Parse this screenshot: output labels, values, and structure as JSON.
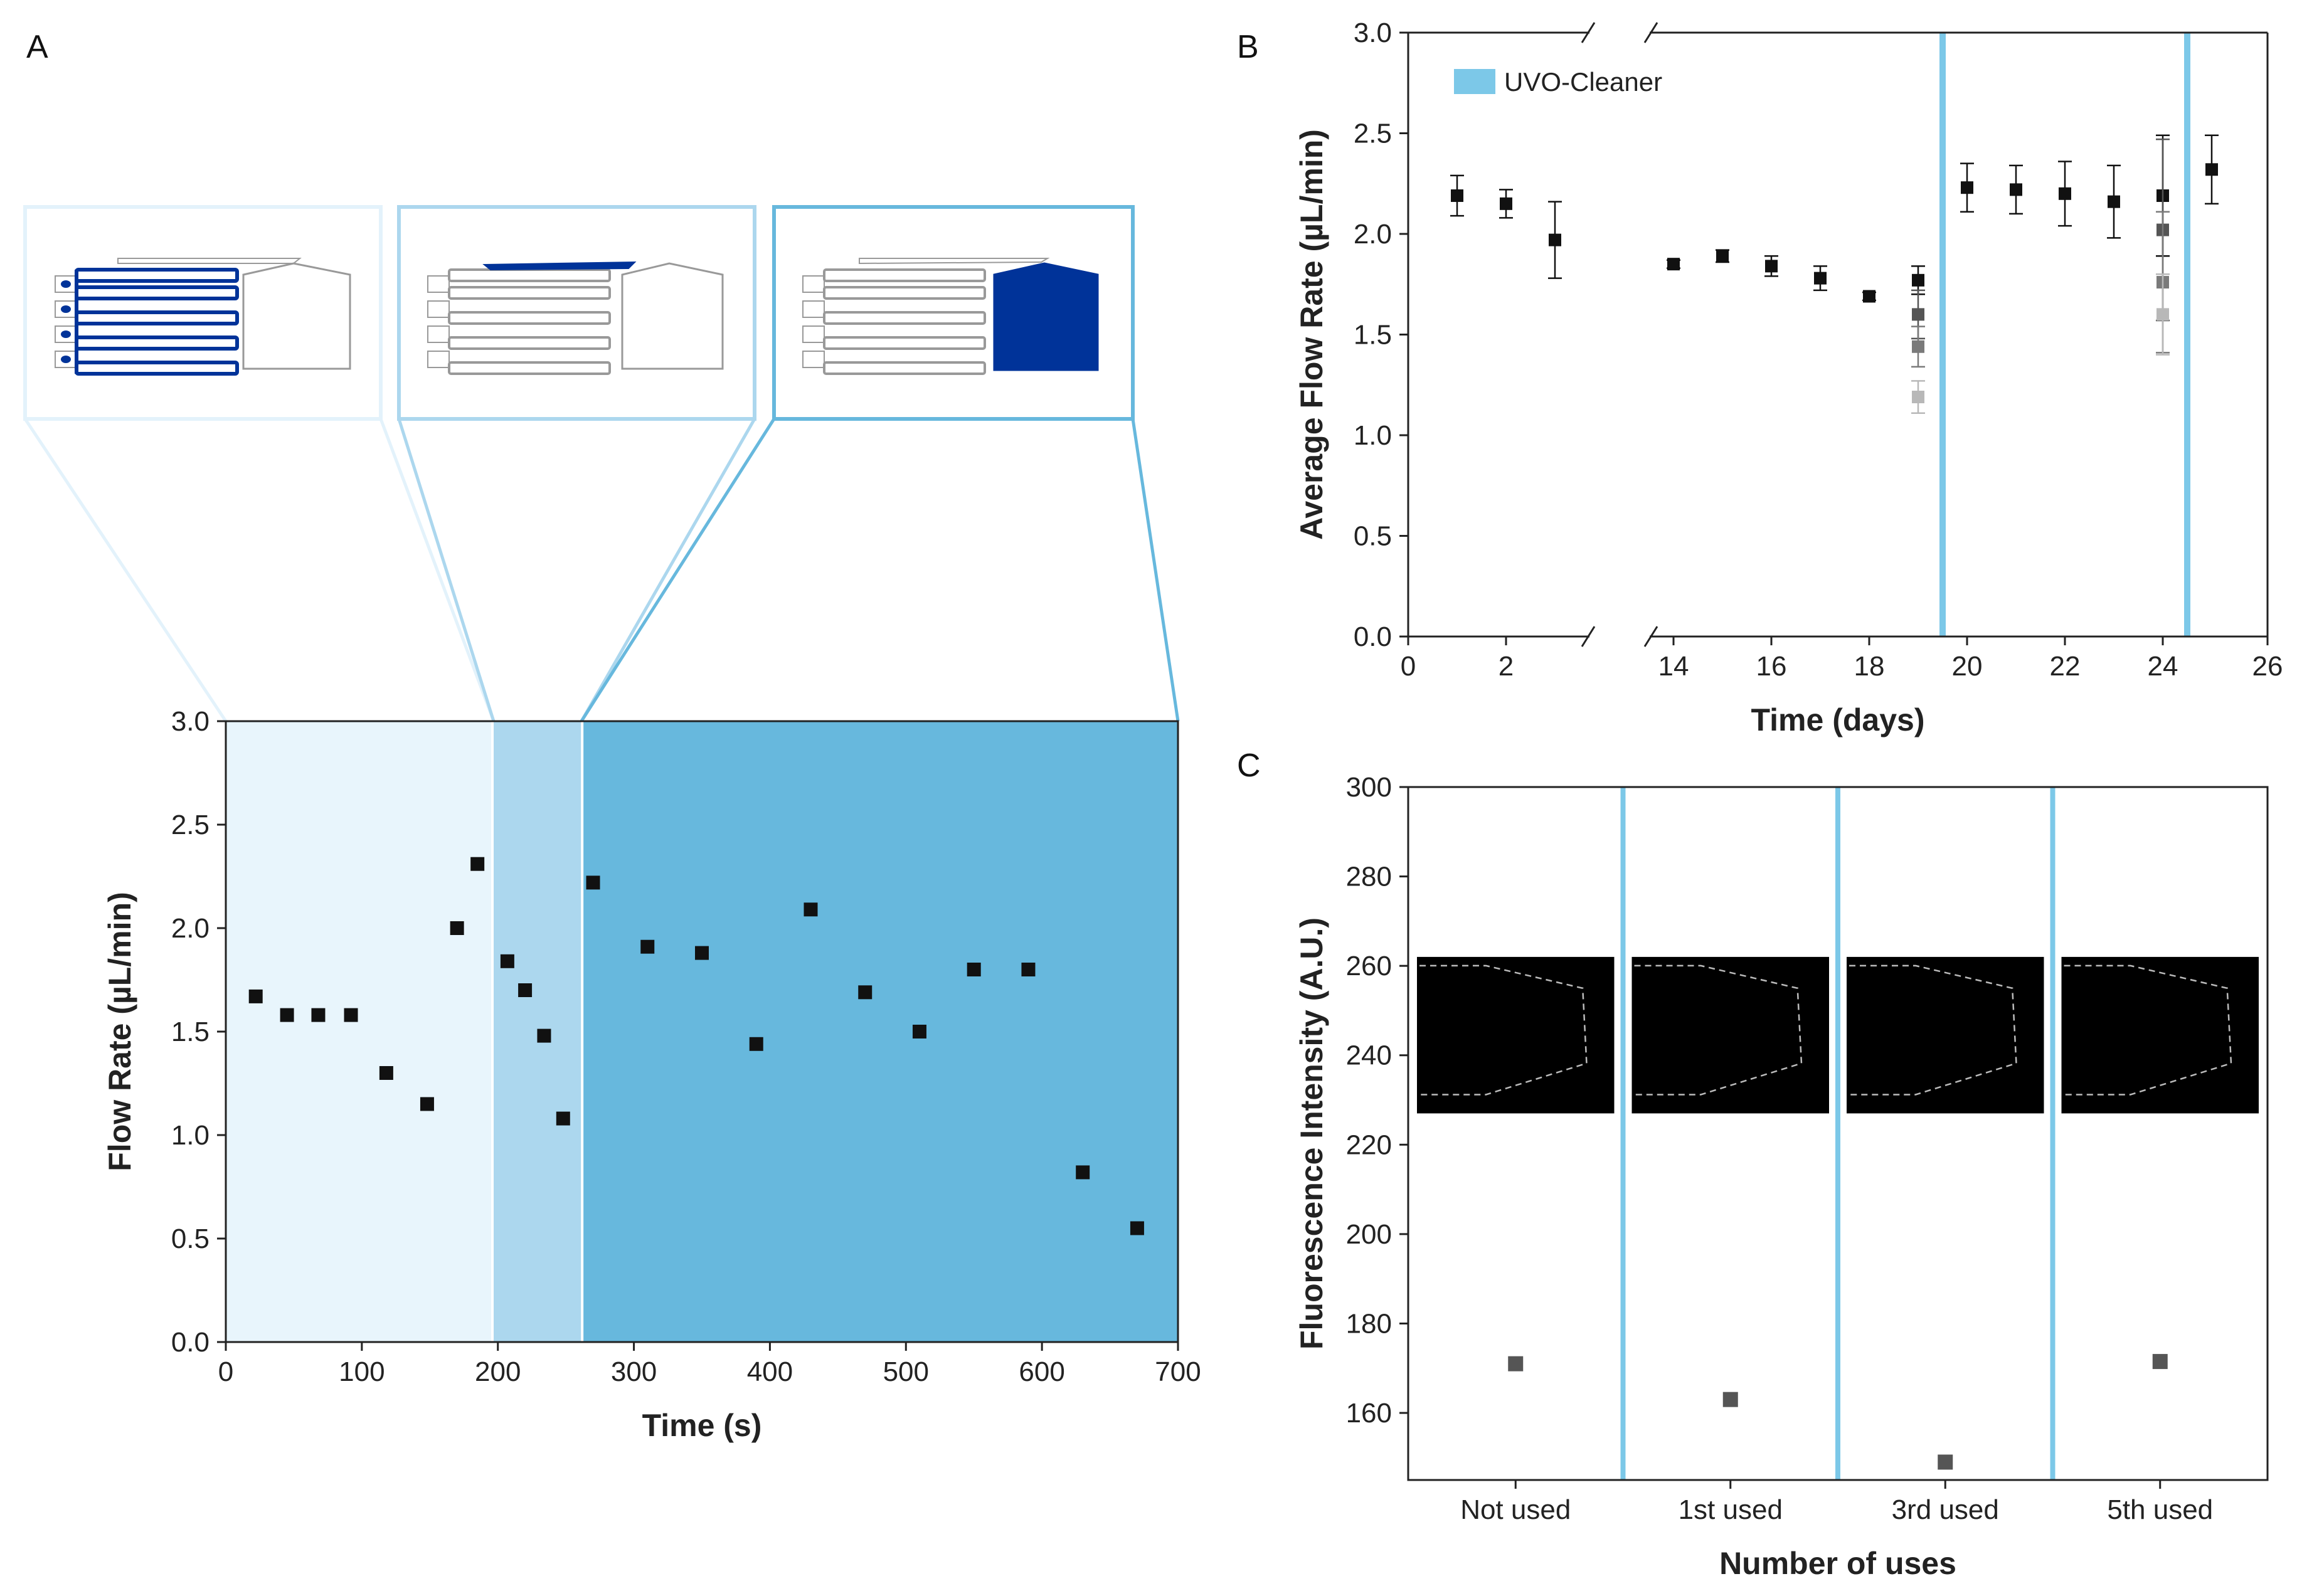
{
  "figure": {
    "panels": [
      "A",
      "B",
      "C"
    ]
  },
  "colors": {
    "phase1": "#e8f5fc",
    "phase2": "#acd7ee",
    "phase3": "#67b8dd",
    "uvo": "#7cc8e8",
    "channel_fill": "#003399",
    "marker": "#111111",
    "marker_grey": "#555555"
  },
  "chart_data": [
    {
      "panel": "A",
      "type": "scatter",
      "xlabel": "Time (s)",
      "ylabel": "Flow Rate (µL/min)",
      "xlim": [
        0,
        700
      ],
      "ylim": [
        0,
        3.0
      ],
      "xticks": [
        0,
        100,
        200,
        300,
        400,
        500,
        600,
        700
      ],
      "yticks": [
        0.0,
        0.5,
        1.0,
        1.5,
        2.0,
        2.5,
        3.0
      ],
      "phases": [
        {
          "name": "filling-channels",
          "x_start": 0,
          "x_end": 196
        },
        {
          "name": "filling-connector",
          "x_start": 196,
          "x_end": 262
        },
        {
          "name": "filling-chamber",
          "x_start": 262,
          "x_end": 700
        }
      ],
      "x": [
        22,
        45,
        68,
        92,
        118,
        148,
        170,
        185,
        207,
        220,
        234,
        248,
        270,
        310,
        350,
        390,
        430,
        470,
        510,
        550,
        590,
        630,
        670
      ],
      "y": [
        1.67,
        1.58,
        1.58,
        1.58,
        1.3,
        1.15,
        2.0,
        2.31,
        1.84,
        1.7,
        1.48,
        1.08,
        2.22,
        1.91,
        1.88,
        1.44,
        2.09,
        1.69,
        1.5,
        1.8,
        1.8,
        0.82,
        0.55
      ]
    },
    {
      "panel": "B",
      "type": "scatter",
      "xlabel": "Time (days)",
      "ylabel": "Average Flow Rate (µL/min)",
      "ylim": [
        0,
        3.0
      ],
      "xticks": [
        0,
        2,
        14,
        16,
        18,
        20,
        22,
        24,
        26
      ],
      "yticks": [
        0.0,
        0.5,
        1.0,
        1.5,
        2.0,
        2.5,
        3.0
      ],
      "axis_break": [
        3.5,
        13.5
      ],
      "legend": "UVO-Cleaner",
      "uvo_cleaner_days": [
        19.5,
        24.5
      ],
      "points": [
        {
          "x": 1,
          "y": 2.19,
          "err": 0.1,
          "shade": "black"
        },
        {
          "x": 2,
          "y": 2.15,
          "err": 0.07,
          "shade": "black"
        },
        {
          "x": 3,
          "y": 1.97,
          "err": 0.19,
          "shade": "black"
        },
        {
          "x": 14,
          "y": 1.85,
          "err": 0.02,
          "shade": "black"
        },
        {
          "x": 15,
          "y": 1.89,
          "err": 0.03,
          "shade": "black"
        },
        {
          "x": 16,
          "y": 1.84,
          "err": 0.05,
          "shade": "black"
        },
        {
          "x": 17,
          "y": 1.78,
          "err": 0.06,
          "shade": "black"
        },
        {
          "x": 18,
          "y": 1.69,
          "err": 0.02,
          "shade": "black"
        },
        {
          "x": 19,
          "y": 1.77,
          "err": 0.07,
          "shade": "black"
        },
        {
          "x": 19,
          "y": 1.6,
          "err": 0.12,
          "shade": "dark-grey"
        },
        {
          "x": 19,
          "y": 1.44,
          "err": 0.1,
          "shade": "mid-grey"
        },
        {
          "x": 19,
          "y": 1.19,
          "err": 0.08,
          "shade": "light-grey"
        },
        {
          "x": 20,
          "y": 2.23,
          "err": 0.12,
          "shade": "black"
        },
        {
          "x": 21,
          "y": 2.22,
          "err": 0.12,
          "shade": "black"
        },
        {
          "x": 22,
          "y": 2.2,
          "err": 0.16,
          "shade": "black"
        },
        {
          "x": 23,
          "y": 2.16,
          "err": 0.18,
          "shade": "black"
        },
        {
          "x": 24,
          "y": 2.19,
          "err": 0.3,
          "shade": "black"
        },
        {
          "x": 24,
          "y": 2.02,
          "err": 0.45,
          "shade": "dark-grey"
        },
        {
          "x": 24,
          "y": 1.76,
          "err": 0.35,
          "shade": "mid-grey"
        },
        {
          "x": 24,
          "y": 1.6,
          "err": 0.2,
          "shade": "light-grey"
        },
        {
          "x": 25,
          "y": 2.32,
          "err": 0.17,
          "shade": "black"
        }
      ]
    },
    {
      "panel": "C",
      "type": "scatter",
      "xlabel": "Number of uses",
      "ylabel": "Fluorescence Intensity (A.U.)",
      "ylim": [
        145,
        300
      ],
      "yticks": [
        160,
        180,
        200,
        220,
        240,
        260,
        280,
        300
      ],
      "categories": [
        "Not used",
        "1st used",
        "3rd used",
        "5th used"
      ],
      "values": [
        171,
        163,
        149,
        171.5
      ]
    }
  ]
}
